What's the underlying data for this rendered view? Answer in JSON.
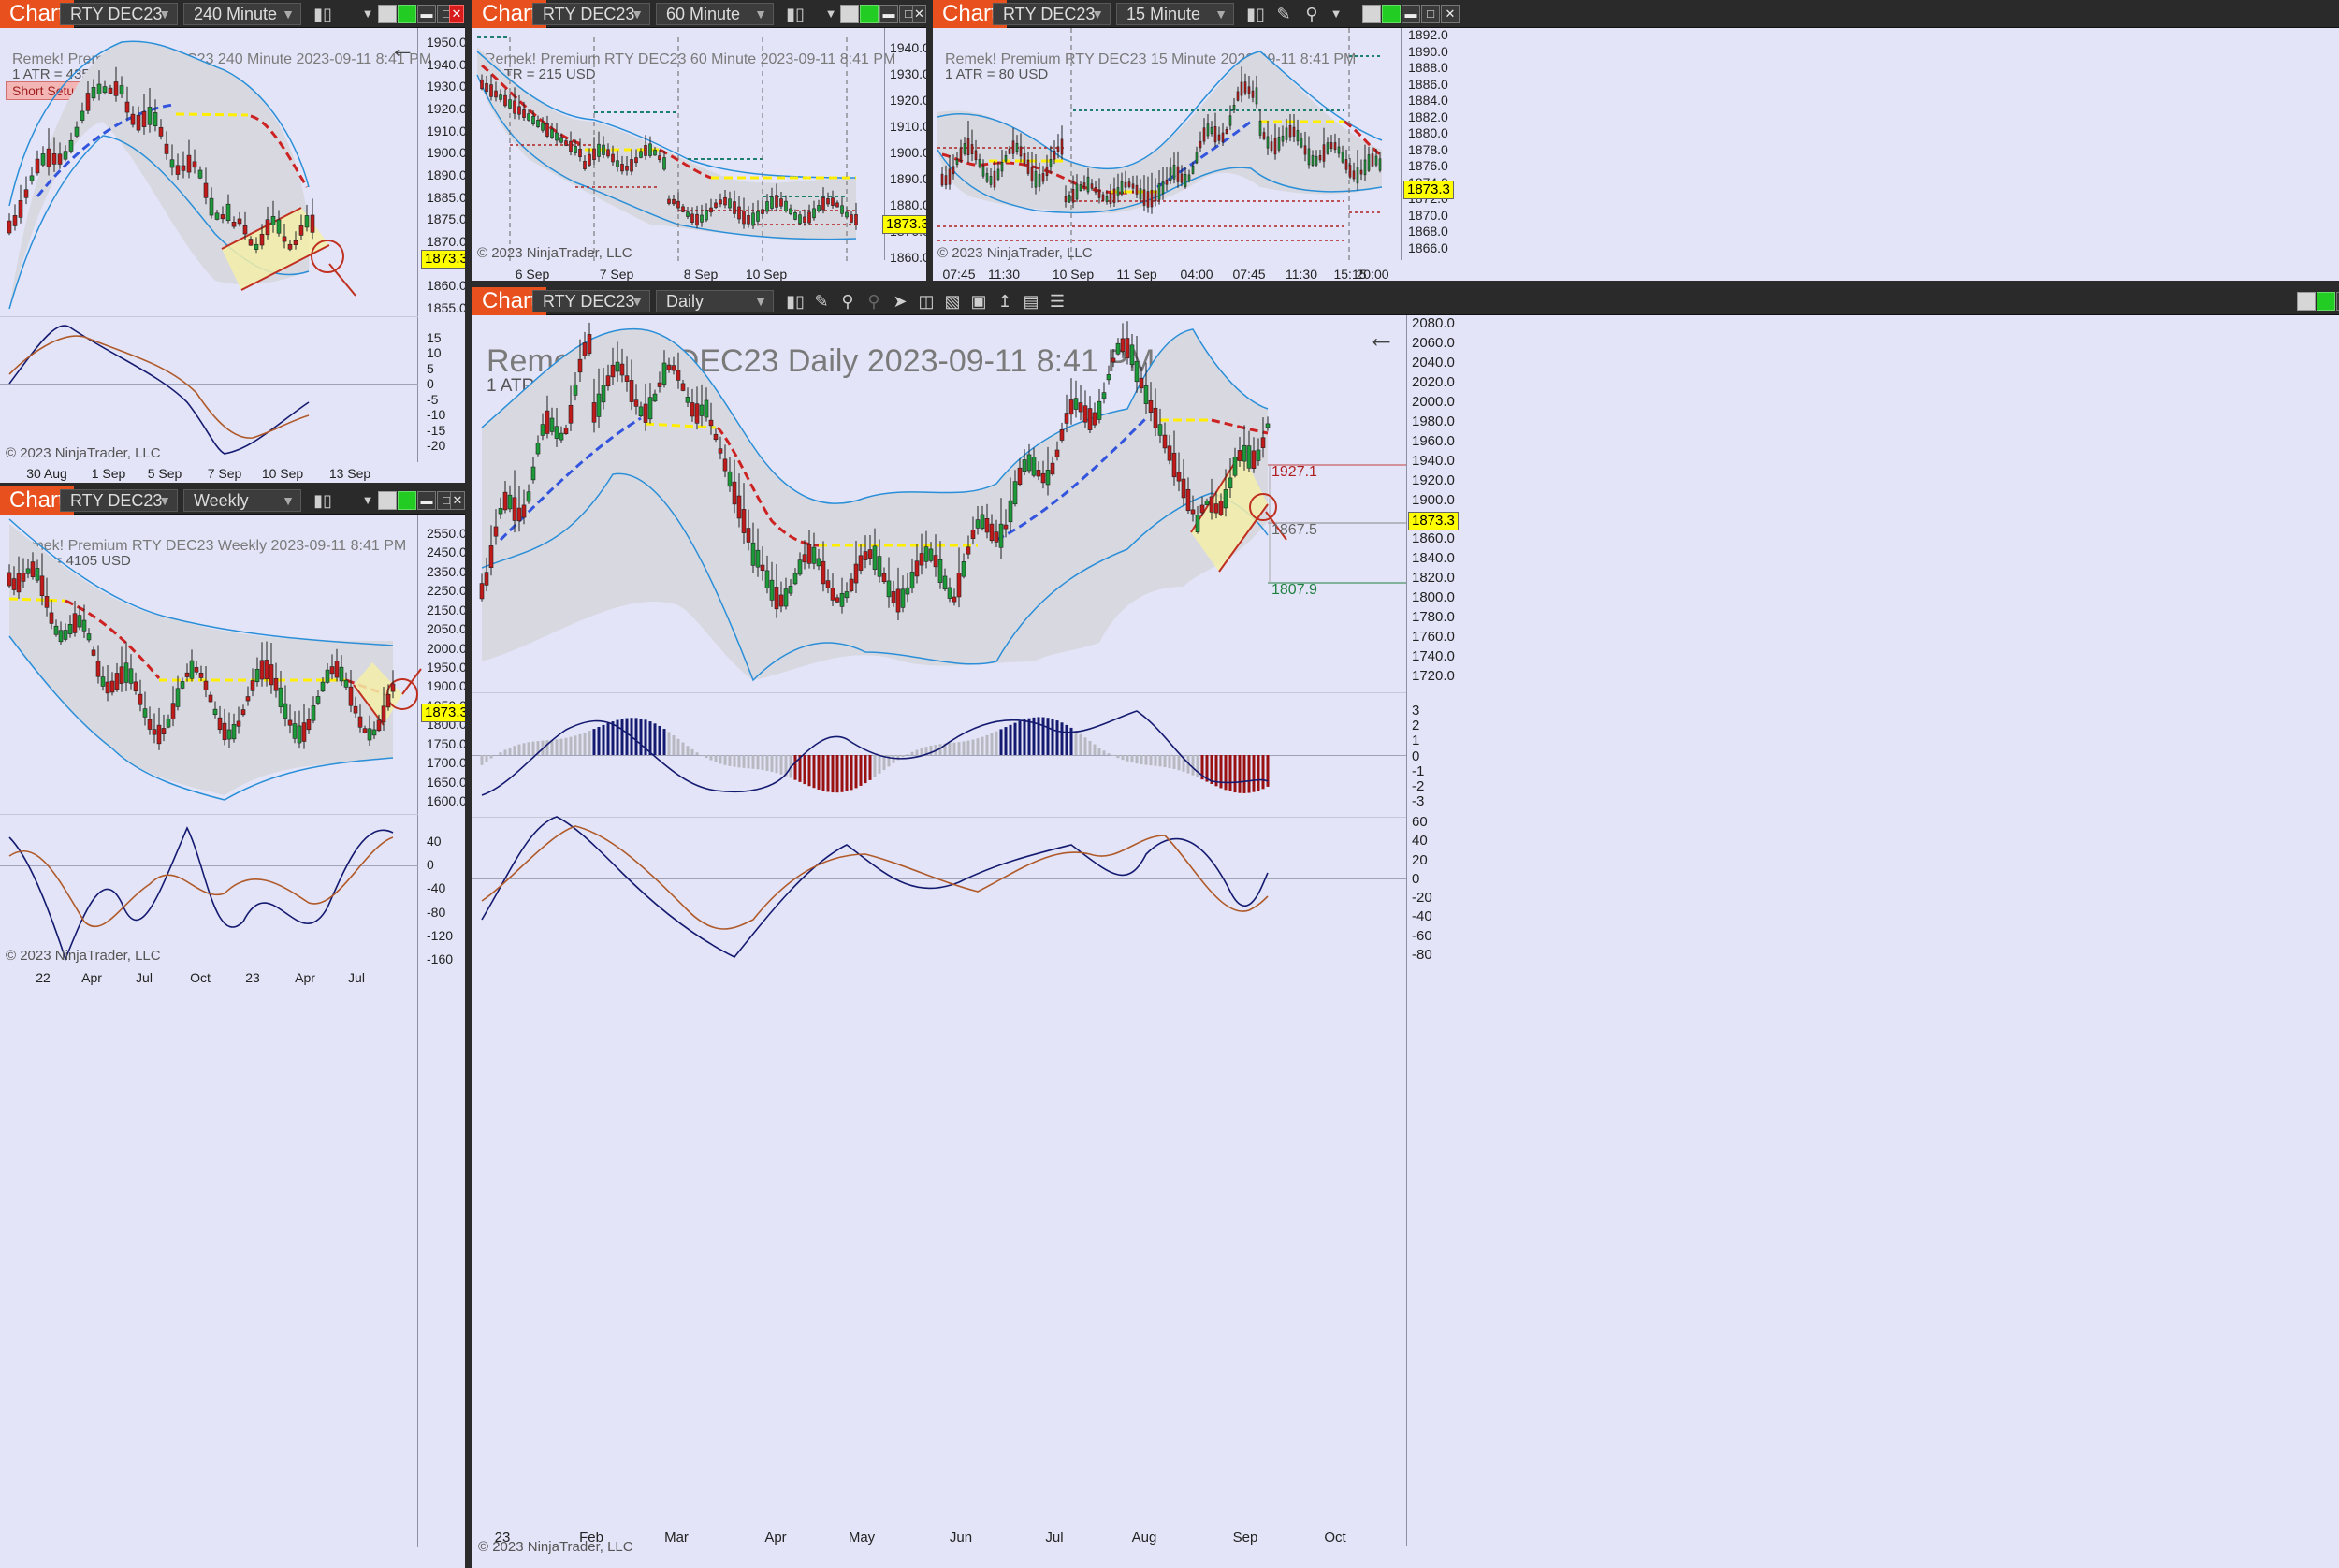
{
  "panes": {
    "p240": {
      "chip": "Chart",
      "instrument": "RTY DEC23",
      "interval": "240 Minute",
      "title": "Remek!  Premium  RTY DEC23  240 Minute  2023-09-11 8:41 PM",
      "atr": "1 ATR = 435 USD",
      "badge": "Short Setup",
      "copyright": "© 2023 NinjaTrader, LLC",
      "price_tag": "1873.3",
      "price_ticks": [
        "1950.0",
        "1940.0",
        "1930.0",
        "1920.0",
        "1910.0",
        "1900.0",
        "1890.0",
        "1885.0",
        "1875.0",
        "1870.0",
        "1865.0",
        "1860.0",
        "1855.0"
      ],
      "osc_ticks": [
        "15",
        "10",
        "5",
        "0",
        "-5",
        "-10",
        "-15",
        "-20"
      ],
      "x_ticks": [
        "30 Aug",
        "1 Sep",
        "5 Sep",
        "7 Sep",
        "10 Sep",
        "13 Sep"
      ]
    },
    "p60": {
      "chip": "Chart",
      "instrument": "RTY DEC23",
      "interval": "60 Minute",
      "title": "Remek!  Premium  RTY DEC23  60 Minute  2023-09-11 8:41 PM",
      "atr": "1 ATR = 215 USD",
      "copyright": "© 2023 NinjaTrader, LLC",
      "price_tag": "1873.3",
      "price_ticks": [
        "1940.0",
        "1930.0",
        "1920.0",
        "1910.0",
        "1900.0",
        "1890.0",
        "1880.0",
        "1870.0",
        "1860.0"
      ],
      "x_ticks": [
        "6 Sep",
        "7 Sep",
        "8 Sep",
        "10 Sep"
      ]
    },
    "p15": {
      "chip": "Chart",
      "instrument": "RTY DEC23",
      "interval": "15 Minute",
      "title": "Remek!  Premium  RTY DEC23  15 Minute  2023-09-11 8:41 PM",
      "atr": "1 ATR = 80 USD",
      "copyright": "© 2023 NinjaTrader, LLC",
      "price_tag": "1873.3",
      "price_ticks": [
        "1892.0",
        "1890.0",
        "1888.0",
        "1886.0",
        "1884.0",
        "1882.0",
        "1880.0",
        "1878.0",
        "1876.0",
        "1874.0",
        "1872.0",
        "1870.0",
        "1868.0",
        "1866.0"
      ],
      "x_ticks": [
        "07:45",
        "11:30",
        "10 Sep",
        "11 Sep",
        "04:00",
        "07:45",
        "11:30",
        "15:15",
        "20:00"
      ]
    },
    "pW": {
      "chip": "Chart",
      "instrument": "RTY DEC23",
      "interval": "Weekly",
      "title": "Remek!  Premium  RTY DEC23  Weekly  2023-09-11 8:41 PM",
      "atr": "1 ATR = 4105 USD",
      "copyright": "© 2023 NinjaTrader, LLC",
      "price_tag": "1873.3",
      "price_ticks": [
        "2550.0",
        "2450.0",
        "2350.0",
        "2250.0",
        "2150.0",
        "2050.0",
        "2000.0",
        "1950.0",
        "1900.0",
        "1850.0",
        "1800.0",
        "1750.0",
        "1700.0",
        "1650.0",
        "1600.0"
      ],
      "osc_ticks": [
        "40",
        "0",
        "-40",
        "-80",
        "-120",
        "-160"
      ],
      "x_ticks": [
        "22",
        "Apr",
        "Jul",
        "Oct",
        "23",
        "Apr",
        "Jul"
      ]
    },
    "pD": {
      "chip": "Chart",
      "instrument": "RTY DEC23",
      "interval": "Daily",
      "title": "Remek!  RTY DEC23  Daily  2023-09-11 8:41 PM",
      "atr": "1 ATR = 1460 USD",
      "copyright": "© 2023 NinjaTrader, LLC",
      "price_tag": "1873.3",
      "levels": [
        "1927.1",
        "1867.5",
        "1807.9"
      ],
      "price_ticks": [
        "2080.0",
        "2060.0",
        "2040.0",
        "2020.0",
        "2000.0",
        "1980.0",
        "1960.0",
        "1940.0",
        "1920.0",
        "1900.0",
        "1880.0",
        "1860.0",
        "1840.0",
        "1820.0",
        "1800.0",
        "1780.0",
        "1760.0",
        "1740.0",
        "1720.0"
      ],
      "hist_ticks": [
        "3",
        "2",
        "1",
        "0",
        "-1",
        "-2",
        "-3"
      ],
      "osc_ticks": [
        "60",
        "40",
        "20",
        "0",
        "-20",
        "-40",
        "-60",
        "-80"
      ],
      "x_ticks": [
        "23",
        "Feb",
        "Mar",
        "Apr",
        "May",
        "Jun",
        "Jul",
        "Aug",
        "Sep",
        "Oct"
      ]
    }
  },
  "colors": {
    "chip": "#e8501e",
    "panel_bg": "#e3e4f7",
    "band": "#d8d8e0",
    "band_line": "#2a8fd8",
    "up": "#1c9a3a",
    "down": "#c01a1a",
    "tag": "#ffff00",
    "osc_fast": "#141a70",
    "osc_slow": "#b05a2a"
  },
  "side_glyphs": [
    "N",
    "T",
    "M"
  ]
}
